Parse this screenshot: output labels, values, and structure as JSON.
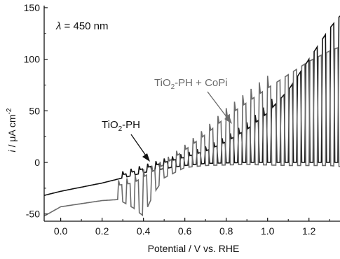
{
  "chart_data": {
    "type": "line",
    "xlabel": "Potential / V vs. RHE",
    "ylabel": {
      "prefix": "i",
      "rest": " / μA cm",
      "sup": "-2"
    },
    "xlim": [
      -0.08,
      1.35
    ],
    "ylim": [
      -57,
      152
    ],
    "x_ticks": [
      0.0,
      0.2,
      0.4,
      0.6,
      0.8,
      1.0,
      1.2
    ],
    "x_tick_labels": [
      "0.0",
      "0.2",
      "0.4",
      "0.6",
      "0.8",
      "1.0",
      "1.2"
    ],
    "y_ticks": [
      -50,
      0,
      50,
      100,
      150
    ],
    "y_tick_labels": [
      "-50",
      "0",
      "50",
      "100",
      "150"
    ],
    "grid": false,
    "annotations": {
      "wavelength": {
        "lambda": "λ",
        "rest": " = 450 nm"
      },
      "series1_label": {
        "pre": "TiO",
        "sub": "2",
        "post": "-PH"
      },
      "series2_label": {
        "pre": "TiO",
        "sub": "2",
        "post": "-PH + CoPi"
      }
    },
    "colors": {
      "series1": "#111111",
      "series2": "#6b6b6b",
      "axis": "#111111"
    },
    "series": [
      {
        "id": "tio2-ph",
        "chopping": {
          "start": 0.3,
          "period": 0.04,
          "duty": 0.5
        },
        "dark": [
          [
            -0.08,
            -32
          ],
          [
            0.0,
            -28
          ],
          [
            0.1,
            -24
          ],
          [
            0.2,
            -20
          ],
          [
            0.3,
            -15
          ],
          [
            0.4,
            -10
          ],
          [
            0.5,
            -6
          ],
          [
            0.6,
            -3
          ],
          [
            0.7,
            -1
          ],
          [
            0.9,
            0
          ],
          [
            1.1,
            0
          ],
          [
            1.3,
            0
          ],
          [
            1.35,
            0
          ]
        ],
        "light": [
          [
            0.3,
            -12
          ],
          [
            0.4,
            -6
          ],
          [
            0.5,
            0
          ],
          [
            0.6,
            5
          ],
          [
            0.7,
            11
          ],
          [
            0.8,
            20
          ],
          [
            0.9,
            32
          ],
          [
            1.0,
            48
          ],
          [
            1.1,
            70
          ],
          [
            1.2,
            100
          ],
          [
            1.3,
            130
          ],
          [
            1.35,
            142
          ]
        ]
      },
      {
        "id": "tio2-ph-copi",
        "chopping": {
          "start": 0.28,
          "period": 0.04,
          "duty": 0.5
        },
        "dark": [
          [
            -0.08,
            -52
          ],
          [
            0.0,
            -43
          ],
          [
            0.1,
            -40
          ],
          [
            0.2,
            -37
          ],
          [
            0.28,
            -36
          ],
          [
            0.35,
            -44
          ],
          [
            0.4,
            -52
          ],
          [
            0.45,
            -30
          ],
          [
            0.5,
            -15
          ],
          [
            0.6,
            -5
          ],
          [
            0.7,
            -3
          ],
          [
            0.9,
            -2
          ],
          [
            1.1,
            -3
          ],
          [
            1.3,
            -3
          ],
          [
            1.35,
            -4
          ]
        ],
        "light": [
          [
            0.28,
            -22
          ],
          [
            0.35,
            -20
          ],
          [
            0.4,
            -14
          ],
          [
            0.45,
            -8
          ],
          [
            0.5,
            -2
          ],
          [
            0.6,
            12
          ],
          [
            0.7,
            27
          ],
          [
            0.8,
            44
          ],
          [
            0.9,
            58
          ],
          [
            1.0,
            72
          ],
          [
            1.1,
            85
          ],
          [
            1.2,
            98
          ],
          [
            1.3,
            108
          ],
          [
            1.35,
            112
          ]
        ]
      }
    ]
  }
}
